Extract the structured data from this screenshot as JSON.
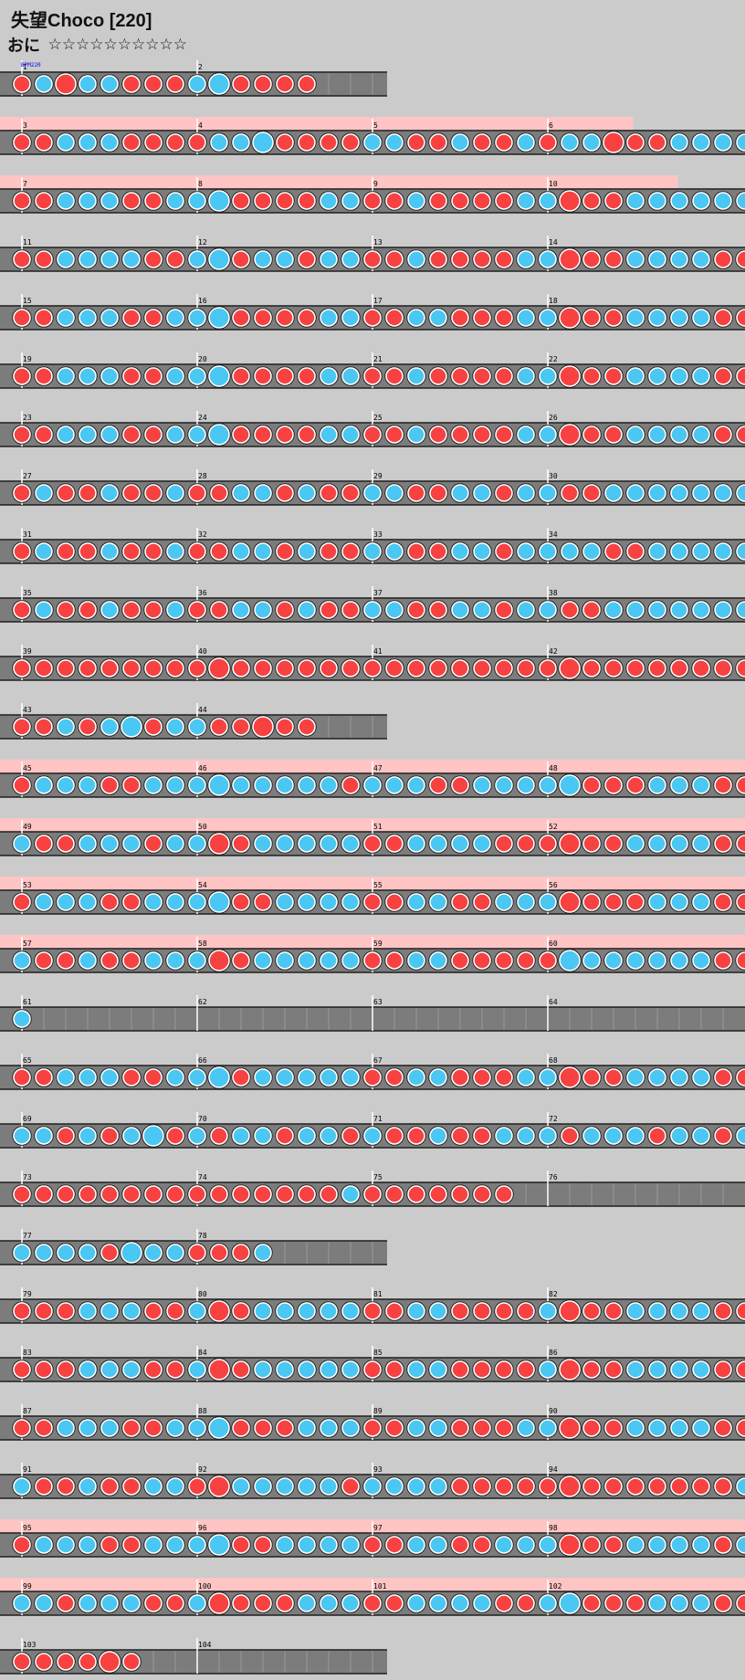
{
  "song": {
    "title": "失望Choco [220]",
    "difficulty_label": "おに",
    "stars_total": 10,
    "bpm_label": "BPM220"
  },
  "colors": {
    "background": "#cbcbcb",
    "lane": "#7c7c7c",
    "gogo_band": "#ffc4c4",
    "don": "#f84141",
    "ka": "#4ac7f2",
    "note_border": "#222222",
    "bpm_text": "#0000ff"
  },
  "rows": [
    {
      "bars": [
        1,
        2
      ],
      "pattern": "r3b2R0B2B2R4R5R6B8B0R2R3R4R5",
      "gogo": false
    },
    {
      "bars": [
        3,
        4,
        5,
        6
      ],
      "pattern": "r1R4B1B2B3R4R5R6R7B8B9B0R1R2R3R4B5B6R1R2B3R4R5B6R7B8B9R0R1R2B3B4B5B6R7R8R1R2R3B4B5B6B7R8B9B0B1R2R3B4B5B6R7B8R1B2B3B4B5B6R7R8R9R0B1B3B4B5B6",
      "gogo": true,
      "gogo_end": 0.85
    },
    {
      "bars": [
        7,
        8,
        9,
        10
      ],
      "pattern": "r1R2B3B4B5R6R7B8B9B0R1R2R3R4B5B6R1R2B3R4R5R6R7B8B9R0R1R2B3B4B5B6B7B8R1R2R3B4B5R6R7R8B9B0R1R2R3B4B5B6R7B8R1B2B3B4B5B6R7R8R9B0B1B2R5",
      "gogo": true,
      "gogo_end": 0.91
    },
    {
      "bars": [
        11,
        12,
        13,
        14
      ],
      "pattern": "r1R2B3B4B5B6R7R8B9B0R1B2B3R4B5B6R1R2B3R4R5R6R7B8B9R0R1R2B3B4B5B6R7R8R1R2B3B4B5B6R7R8B9B0R1R2R3B4B5B6R7B8R1B2B3B4B5B6R7R8R9B0B1R2B5",
      "gogo": false
    },
    {
      "bars": [
        15,
        16,
        17,
        18
      ],
      "pattern": "r1R2B3B4B5R6R7B8B9B0R1R2R3R4B5B6R1R2B3B4R5R6R7B8B9R0R1R2B3B4B5B6R7R8B1B2B3B4B5B6B7R8B9B0R1R2R3B4B5B6B7B8R1B2B3B4B5B6R7R8R9R0B1R2B5",
      "gogo": false
    },
    {
      "bars": [
        19,
        20,
        21,
        22
      ],
      "pattern": "r1R2B3B4B5R6R7B8B9B0R1R2R3R4B5B6R1R2B3R4R5R6R7B8B9R0R1R2B3B4B5B6R7R8B1B2B3B4B5R6R7R8B9B0R1R2R3B4B5B6R7B8R1B2B3B4B5B6R7R8R9R0B1B3B4B5B6",
      "gogo": false
    },
    {
      "bars": [
        23,
        24,
        25,
        26
      ],
      "pattern": "r1R2B3B4B5R6R7B8B9B0R1R2R3R4B5B6R1R2B3R4R5R6R7B8B9R0R1R2B3B4B5B6R7R8B1B2B3B4B5R6R7R8B9B0R1R2R3B4B5B6R7B8R1B2B3B4B5B6R7R8R9R0B1B2R5",
      "gogo": false
    },
    {
      "bars": [
        27,
        28,
        29,
        30
      ],
      "pattern": "r1B3R5R7B9R1R2B3R5R7B9B1R3B5R6R7B9B1R1R2B3B4R5B7B9R1R3B5B1B2B3B5B6B7R9R0R1B3",
      "gogo": false
    },
    {
      "bars": [
        31,
        32,
        33,
        34
      ],
      "pattern": "r1B3R5R7B9R1R2B3R5R7B9B1R3B5R6R7B9B1R1R2B3B4R5B6B7B8B9R1R3B5B1B2B3B5B6B7R9R0R1B3B4B5B6",
      "gogo": false
    },
    {
      "bars": [
        35,
        36,
        37,
        38
      ],
      "pattern": "r1B3R5R7B9R1R2B3R5R7B9B1R3B5R6R7B9B1R1R2B3B4R5B7B9R1R3B5B1B2B3B5B6B7R9R0R1B3B5",
      "gogo": false
    },
    {
      "bars": [
        39,
        40,
        41,
        42
      ],
      "pattern": "r1R2R3R4R5R6R7R8R9R0R1R2R3R4R5R6R1R2R3R4R5R6R7R8R9R0R1R2R3R4R5R6R1R2R3R4R5R6R7R8R9R0R1R2R3R4R5R6B1B5B9R3R4R5R6",
      "gogo": false
    },
    {
      "bars": [
        43,
        44
      ],
      "pattern": "r1R3B5R7B9B0R1B5B6R8R9R0R1R2",
      "gogo": false
    },
    {
      "bars": [
        45,
        46,
        47,
        48
      ],
      "pattern": "r1B2B3B4R5R6B7B8B9B0B1B2B3B4B5R6B1B2B3R4R5B6B7B8B9B0R1R2R3B4B5B6R1R2B3B4B5B6B7R8R9B0R1R2R3B4B5B6R1R2B3R4R5R6B7B8R9B0B1B2R3R4R5R6",
      "gogo": true,
      "gogo_end": 1.0
    },
    {
      "bars": [
        49,
        50,
        51,
        52
      ],
      "pattern": "b1R2R3B4B5B6R7B8B9R0R1B2B3B4B5B6R1R2B3B4B5B6R7R8R9R0R1R2B3B4B5B6R1R2B3B4R5R6B7R8R9R0B1B2R3R4B5B6R1R2R3B4B5B6B7R8R9B0B1R2B3B4B5B6",
      "gogo": true,
      "gogo_end": 1.0
    },
    {
      "bars": [
        53,
        54,
        55,
        56
      ],
      "pattern": "r1B2B3B4R5R6B7B8B9B0R1R2B3B4B5B6R1R2B3B4R5R6B7B8B9R0R1R2R3B4B5B6R1R2B3B4B5B6B7R8R9R0B1B2B3B4B5B6R1R2B3B4R5R6B7R8R9R0B1B2R3R4R5R6",
      "gogo": true,
      "gogo_end": 1.0
    },
    {
      "bars": [
        57,
        58,
        59,
        60
      ],
      "pattern": "b1R2R3B4R5R6B7B8B9R0R1B2B3B4B5B6R1R2B3B4R5R6R7R8R9B0B1B2B3B4B5B6R1R2R3B4B5B6R7R8R9B0B1R2B3B4B5B6R1B2B3R4R5R6R7B8B9B0B1R2R3R4R6",
      "gogo": true,
      "gogo_end": 1.0
    },
    {
      "bars": [
        61,
        62,
        63,
        64
      ],
      "pattern": "b1",
      "gogo": false
    },
    {
      "bars": [
        65,
        66,
        67,
        68
      ],
      "pattern": "r1R2B3B4B5R6R7B8B9B0R1B2B3B4B5B6R1R2B3B4R5R6R7B8B9R0R1R2B3B4B5B6R1R2B3B4R5B6B7R8R9B0B1R2R3B4B5B6R1B2B3B4B5B6B7B8R9R1R3B5B6",
      "gogo": false
    },
    {
      "bars": [
        69,
        70,
        71,
        72
      ],
      "pattern": "b1B2R4B6R8B9B0R2B4R6B7B8R1B3B5R7B9R1R3B5R6R7B9B1B3R5B7B9B1R2B3B5R7B9",
      "gogo": false
    },
    {
      "bars": [
        73,
        74,
        75,
        76
      ],
      "pattern": "r1R3R5R9R3R7R8R1R5R9R3R5R7R1R5B9R3R5R9R1R3R5R9",
      "gogo": false
    },
    {
      "bars": [
        77,
        78
      ],
      "pattern": "b1B3B5B7R9B0B1B3R5R9R3B7",
      "gogo": false
    },
    {
      "bars": [
        79,
        80,
        81,
        82
      ],
      "pattern": "r1R2R3B4B5B6R7R8B9R0R1B2B3B4B5B6R1R2B3B4R5R6R7R8B9R0R1R2B3B4B5B6R1R2B3R4R5R6R7B8B9R0R1R2B3B4B5B6R1B2B3B4B5B6R7R8R9B0R1R2B4B5R6",
      "gogo": false
    },
    {
      "bars": [
        83,
        84,
        85,
        86
      ],
      "pattern": "r1R2R3B4B5B6R7R8B9R0R1B2B3B4B5B6R1R2B3B4R5R6R7R8B9R0R1R2B3B4B5B6R1R2B3R4R5R6R7B8B9R0R1R2B3B4B5B6R1B2B3B4B5B6R7R8R9B0R1R2B4B5R6",
      "gogo": false
    },
    {
      "bars": [
        87,
        88,
        89,
        90
      ],
      "pattern": "r1R2B3B4B5R6R7B8B9B0R1R2R3B4B5B6R1R2B3B4R5R6R7B8B9R0R1R2B3B4B5B6R1R2B3R4R5R6R7B8B9R0R1R2B3B4B5B6R1B2B3B4B5B6R7R8R9R0R1R2R3R4R5R6",
      "gogo": false
    },
    {
      "bars": [
        91,
        92,
        93,
        94
      ],
      "pattern": "b1R2R3B4R5R6B7B8R9R0B1B2B3B4B5R6B1B2B3B4R5R6R7R8R9R0R1R2R3R4R5R6R1B2B3B4B5B6R7R8R9R0R1R2R3B4R5R6R1R5R9B3B4B5B6",
      "gogo": false
    },
    {
      "bars": [
        95,
        96,
        97,
        98
      ],
      "pattern": "r1B2B3B4R5R6B7B8B9B0R1R2B3B4B5B6R1R2B3B4R5R6B7B8B9R0R1R2B3B4B5B6R1B2B3B4B5B6R7R8B9B0B1B2R3B4B5B6R1R2B3B4B5B6B7R8B9B0B1R2R3R4R5R6",
      "gogo": true,
      "gogo_end": 1.0
    },
    {
      "bars": [
        99,
        100,
        101,
        102
      ],
      "pattern": "b1B2R3B4B5B6R7R8B9R0R1R2R3B4B5B6R1R2B3B4B5B6R7R8B9B0R1R2R3B4B5B6R1R2R3B4B5B6R7R8R9B0B1R2R3B4B5B6R1R2B3B4B5B6B7B8R9B0R1R2R3R4R6",
      "gogo": true,
      "gogo_end": 1.0
    },
    {
      "bars": [
        103,
        104
      ],
      "pattern": "r1R3R5R9R0R1",
      "gogo": false
    }
  ]
}
